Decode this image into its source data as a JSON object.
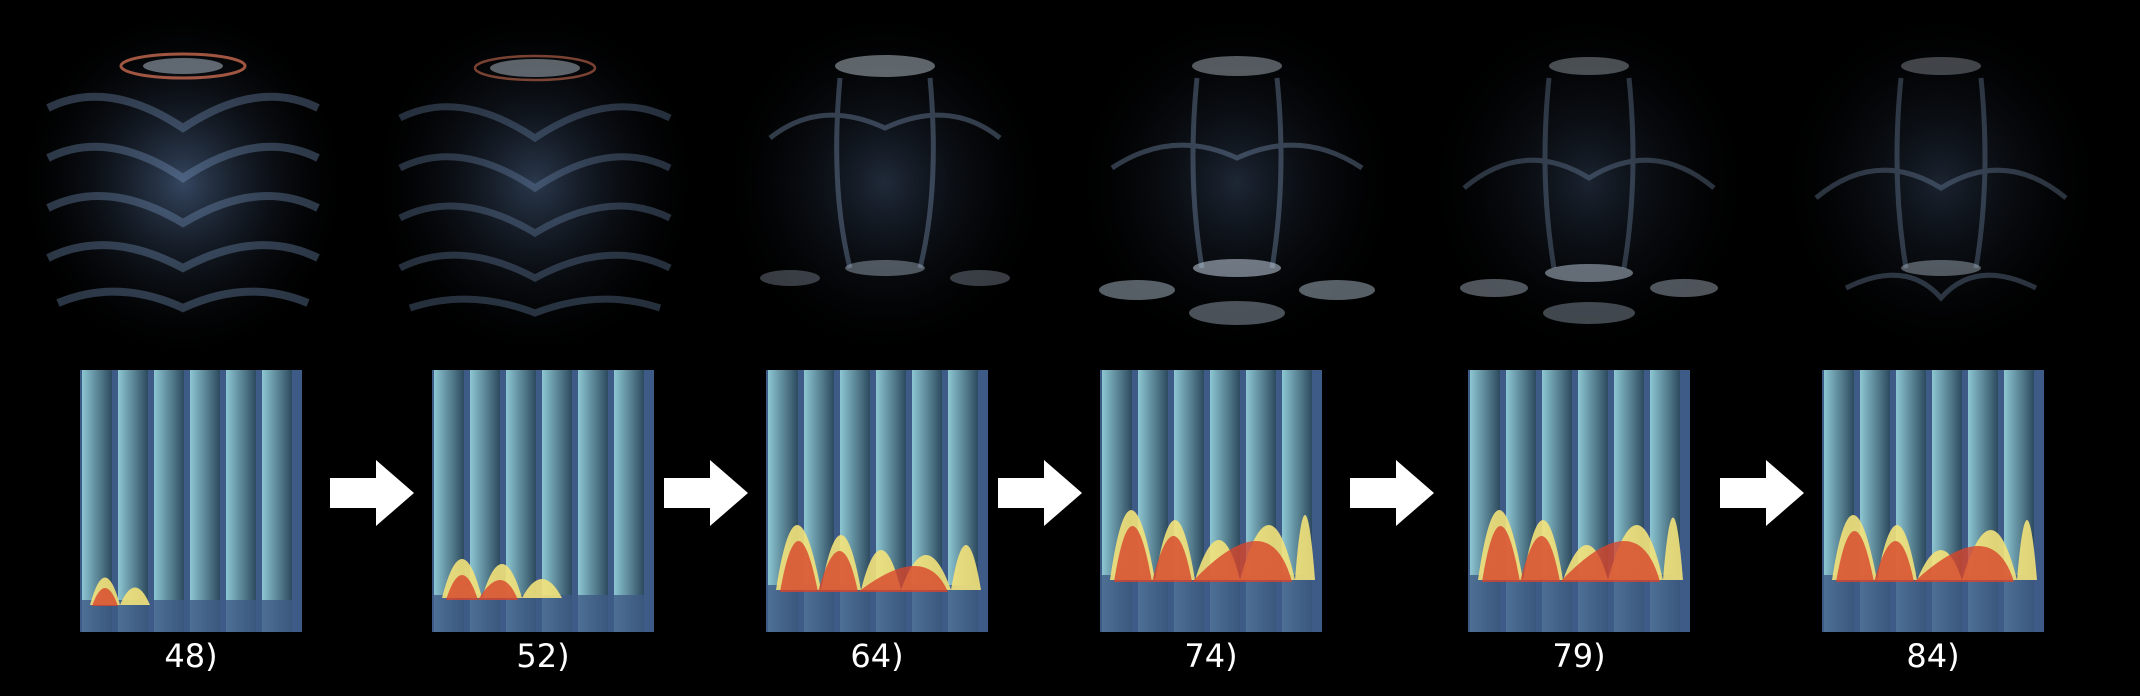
{
  "frames": [
    {
      "label": "48)"
    },
    {
      "label": "52)"
    },
    {
      "label": "64)"
    },
    {
      "label": "74)"
    },
    {
      "label": "79)"
    },
    {
      "label": "84)"
    }
  ],
  "colors": {
    "background": "#000000",
    "volume_glow": "#6f8fb8",
    "column_cyan": "#7ab8c8",
    "fluid_blue": "#3e5a86",
    "plume_yellow": "#f3e27a",
    "plume_red": "#d8452a",
    "arrow": "#ffffff",
    "label_text": "#ffffff"
  },
  "icons": [
    "arrow-right-icon"
  ]
}
